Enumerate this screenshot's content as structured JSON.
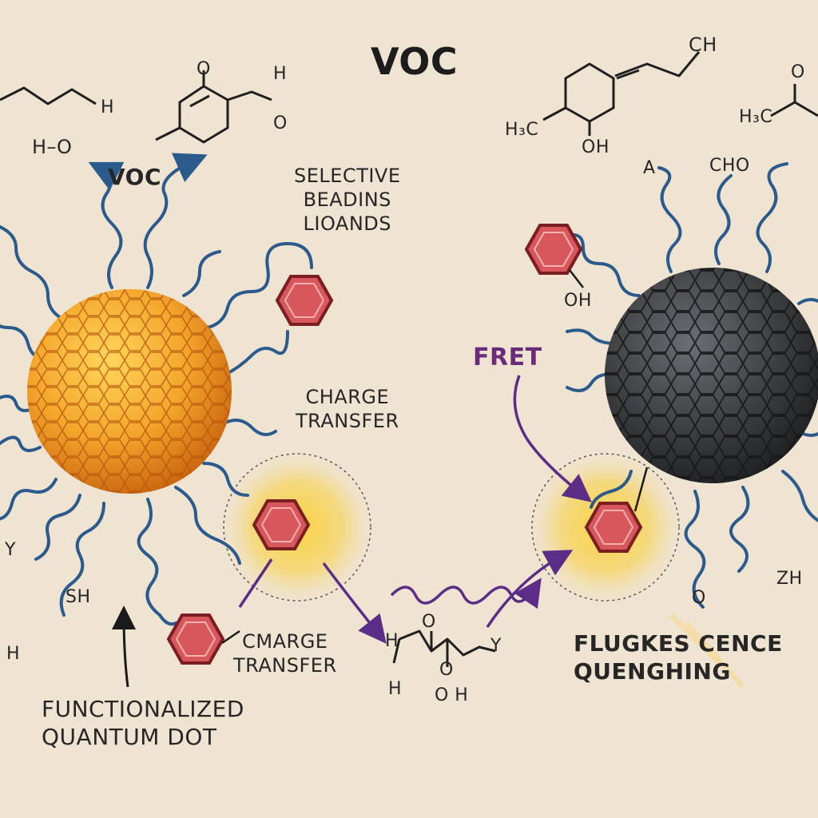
{
  "title": "VOC",
  "labels": {
    "voc_left": "VOC",
    "selective_ligands": "SELECTIVE\nBEADINS\nLIOANDS",
    "charge_transfer_top": "CHARGE\nTRANSFER",
    "charge_transfer_bottom": "CMARGE\nTRANSFER",
    "fret": "FRET",
    "functionalized_qd": "FUNCTIONALIZED\nQUANTUM DOT",
    "fluorescence_quenching": "FLUGKES CENCE\nQUENGHING"
  },
  "chem_text": {
    "h_top_left": "H",
    "h_o_left": "H–O",
    "o_ring_top": "O",
    "h_aldehyde": "H",
    "o_aldehyde": "O",
    "ch_top_right": "CH",
    "h3c": "H₃C",
    "oh_ring": "OH",
    "h3c_far_right": "H₃C",
    "o_far_right": "O",
    "cho": "CHO",
    "a_glyph": "A",
    "oh_benzene": "OH",
    "sh": "SH",
    "h_left": "H",
    "y_left": "Y",
    "chain_h": "H",
    "chain_o1": "O",
    "chain_o2": "O",
    "chain_oh": "O   H",
    "chain_y": "Y",
    "chain_h_left": "H",
    "o_bottom_right": "O",
    "zh_right": "ZH"
  },
  "colors": {
    "background": "#efe3d2",
    "ligand": "#2b5a8c",
    "arrow_purple": "#5b2d86",
    "qd_orange": "#f2a42a",
    "qd_dark": "#3b3d40",
    "benzene": "#d8575c",
    "glow": "#f7c93c"
  }
}
